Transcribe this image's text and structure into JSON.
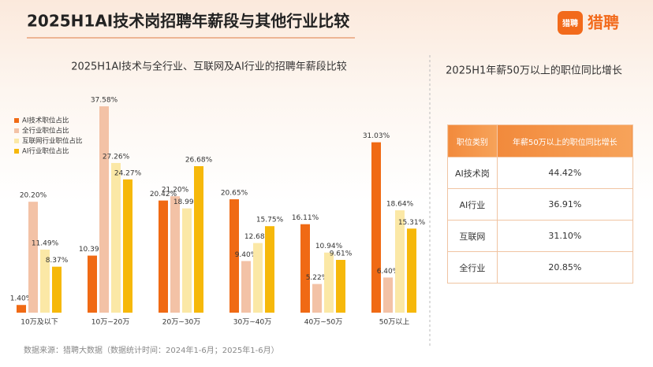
{
  "header": {
    "title": "2025H1AI技术岗招聘年薪段与其他行业比较",
    "logo_icon_text": "猎聘",
    "logo_text": "猎聘"
  },
  "chart_data": {
    "type": "bar",
    "title": "2025H1AI技术与全行业、互联网及AI行业的招聘年薪段比较",
    "categories": [
      "10万及以下",
      "10万~20万",
      "20万~30万",
      "30万~40万",
      "40万~50万",
      "50万以上"
    ],
    "legend": "top-left",
    "grid": false,
    "series": [
      {
        "name": "AI技术职位占比",
        "color": "#f06a14",
        "values": [
          1.4,
          10.39,
          20.42,
          20.65,
          16.11,
          31.03
        ],
        "value_labels": [
          "1.40%",
          "10.39%",
          "20.42%",
          "20.65%",
          "16.11%",
          "31.03%"
        ]
      },
      {
        "name": "全行业职位占比",
        "color": "#f3c2a6",
        "values": [
          20.2,
          37.58,
          21.2,
          9.4,
          5.22,
          6.4
        ],
        "value_labels": [
          "20.20%",
          "37.58%",
          "21.20%",
          "9.40%",
          "5.22%",
          "6.40%"
        ]
      },
      {
        "name": "互联网行业职位占比",
        "color": "#fbe8a6",
        "values": [
          11.49,
          27.26,
          18.99,
          12.68,
          10.94,
          18.64
        ],
        "value_labels": [
          "11.49%",
          "27.26%",
          "18.99%",
          "12.68%",
          "10.94%",
          "18.64%"
        ]
      },
      {
        "name": "AI行业职位占比",
        "color": "#f6b80a",
        "values": [
          8.37,
          24.27,
          26.68,
          15.75,
          9.61,
          15.31
        ],
        "value_labels": [
          "8.37%",
          "24.27%",
          "26.68%",
          "15.75%",
          "9.61%",
          "15.31%"
        ]
      }
    ]
  },
  "table": {
    "title": "2025H1年薪50万以上的职位同比增长",
    "columns": [
      "职位类别",
      "年薪50万以上的职位同比增长"
    ],
    "rows": [
      [
        "AI技术岗",
        "44.42%"
      ],
      [
        "AI行业",
        "36.91%"
      ],
      [
        "互联网",
        "31.10%"
      ],
      [
        "全行业",
        "20.85%"
      ]
    ]
  },
  "footer": "数据来源：猎聘大数据（数据统计时间：2024年1-6月；2025年1-6月）"
}
